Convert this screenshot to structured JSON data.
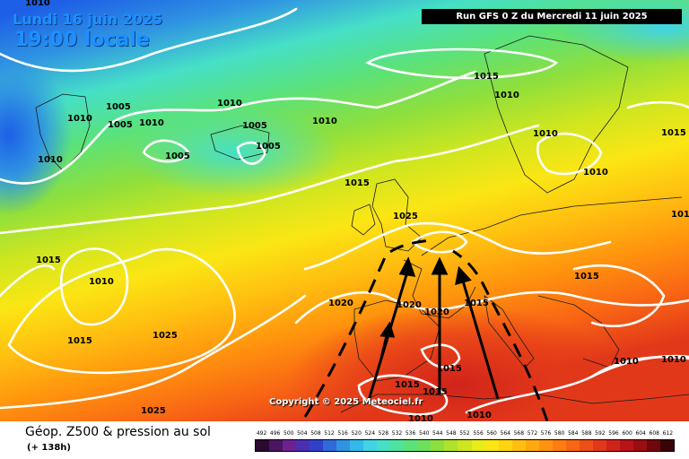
{
  "header": {
    "date": "Lundi 16 juin 2025",
    "time": "19:00 locale",
    "run": "Run GFS 0 Z du Mercredi 11 juin 2025"
  },
  "copyright": "Copyright © 2025 Meteociel.fr",
  "footer": {
    "title": "Géop. Z500 & pression au sol",
    "subtitle": "(+ 138h)"
  },
  "scale": {
    "labels": [
      "492",
      "496",
      "500",
      "504",
      "508",
      "512",
      "516",
      "520",
      "524",
      "528",
      "532",
      "536",
      "540",
      "544",
      "548",
      "552",
      "556",
      "560",
      "564",
      "568",
      "572",
      "576",
      "580",
      "584",
      "588",
      "592",
      "596",
      "600",
      "604",
      "608",
      "612"
    ],
    "colors": [
      "#2a0a2f",
      "#4b1561",
      "#6d2190",
      "#4a2fb0",
      "#3040c8",
      "#2f6ad8",
      "#2f93e2",
      "#33b8ea",
      "#3fd3e6",
      "#46e0c6",
      "#4fe39f",
      "#5be27a",
      "#6fe05b",
      "#8ddf3d",
      "#aee22c",
      "#cde620",
      "#e9ec18",
      "#fbe614",
      "#ffd512",
      "#ffbf10",
      "#ffa90e",
      "#ff930e",
      "#ff7c10",
      "#f96614",
      "#ee4e17",
      "#e2381a",
      "#d0231a",
      "#b81417",
      "#9a0d12",
      "#6e080c",
      "#3a0306"
    ]
  },
  "map": {
    "colors": {
      "gradient": [
        "#1d5fe6",
        "#2f93e2",
        "#46e0c6",
        "#5be27a",
        "#8ddf3d",
        "#cde620",
        "#fbe614",
        "#ffbf10",
        "#ff930e",
        "#f96614",
        "#e2381a"
      ],
      "isobar": "#ffffff"
    },
    "isobar_labels": [
      "1010",
      "1005",
      "1010",
      "1010",
      "1005",
      "1010",
      "1005",
      "1005",
      "1005",
      "1010",
      "1015",
      "1010",
      "1010",
      "1015",
      "1025",
      "1010",
      "1010",
      "1015",
      "1015",
      "1010",
      "1015",
      "1025",
      "1020",
      "1020",
      "1020",
      "1015",
      "1015",
      "1015",
      "1015",
      "1015",
      "1010",
      "1010",
      "1010",
      "1025",
      "1010",
      "1010"
    ]
  }
}
